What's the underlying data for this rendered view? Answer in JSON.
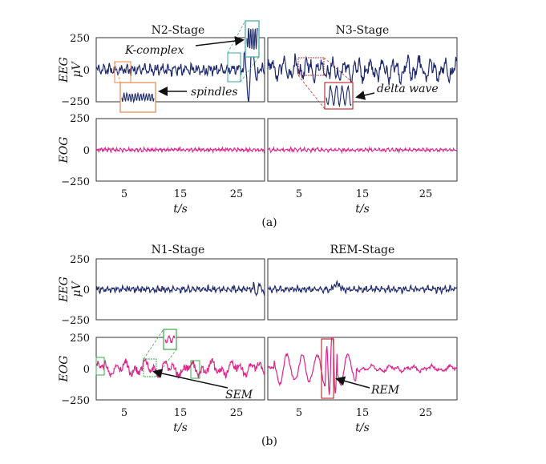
{
  "colors": {
    "eeg": "#1f2a6e",
    "eog": "#e0218a",
    "orange_box": "#e8874a",
    "teal_box": "#3aa7a0",
    "green_box": "#3aa84a",
    "red_box": "#c0353a",
    "axis": "#333333"
  },
  "chart_data": {
    "type": "line",
    "xlabel": "t/s",
    "ylabel_unit": "μV",
    "xlim": [
      0,
      30
    ],
    "ylim": [
      -250,
      250
    ],
    "xticks": [
      "5",
      "15",
      "25"
    ],
    "yticks": [
      "250",
      "0",
      "−250"
    ],
    "sections": [
      {
        "id": "a",
        "label": "(a)",
        "stages": [
          {
            "title": "N2-Stage",
            "channels": [
              {
                "name": "EEG",
                "signal": "eeg",
                "amplitude_uv": 40,
                "events": [
                  {
                    "label": "K-complex",
                    "t": 27.5,
                    "peak_uv": 360
                  },
                  {
                    "label": "spindles",
                    "t": 3.5,
                    "peak_uv": 60
                  }
                ]
              },
              {
                "name": "EOG",
                "signal": "eog",
                "amplitude_uv": 15
              }
            ]
          },
          {
            "title": "N3-Stage",
            "channels": [
              {
                "name": "EEG",
                "signal": "eeg",
                "amplitude_uv": 90,
                "events": [
                  {
                    "label": "delta wave",
                    "t": 5,
                    "peak_uv": 120
                  }
                ]
              },
              {
                "name": "EOG",
                "signal": "eog",
                "amplitude_uv": 15
              }
            ]
          }
        ]
      },
      {
        "id": "b",
        "label": "(b)",
        "stages": [
          {
            "title": "N1-Stage",
            "channels": [
              {
                "name": "EEG",
                "signal": "eeg",
                "amplitude_uv": 25
              },
              {
                "name": "EOG",
                "signal": "eog",
                "amplitude_uv": 60,
                "events": [
                  {
                    "label": "SEM",
                    "t": 9,
                    "peak_uv": 80
                  }
                ]
              }
            ]
          },
          {
            "title": "REM-Stage",
            "channels": [
              {
                "name": "EEG",
                "signal": "eeg",
                "amplitude_uv": 25
              },
              {
                "name": "EOG",
                "signal": "eog",
                "amplitude_uv": 200,
                "events": [
                  {
                    "label": "REM",
                    "t": 10,
                    "peak_uv": 260
                  }
                ]
              }
            ]
          }
        ]
      }
    ]
  }
}
